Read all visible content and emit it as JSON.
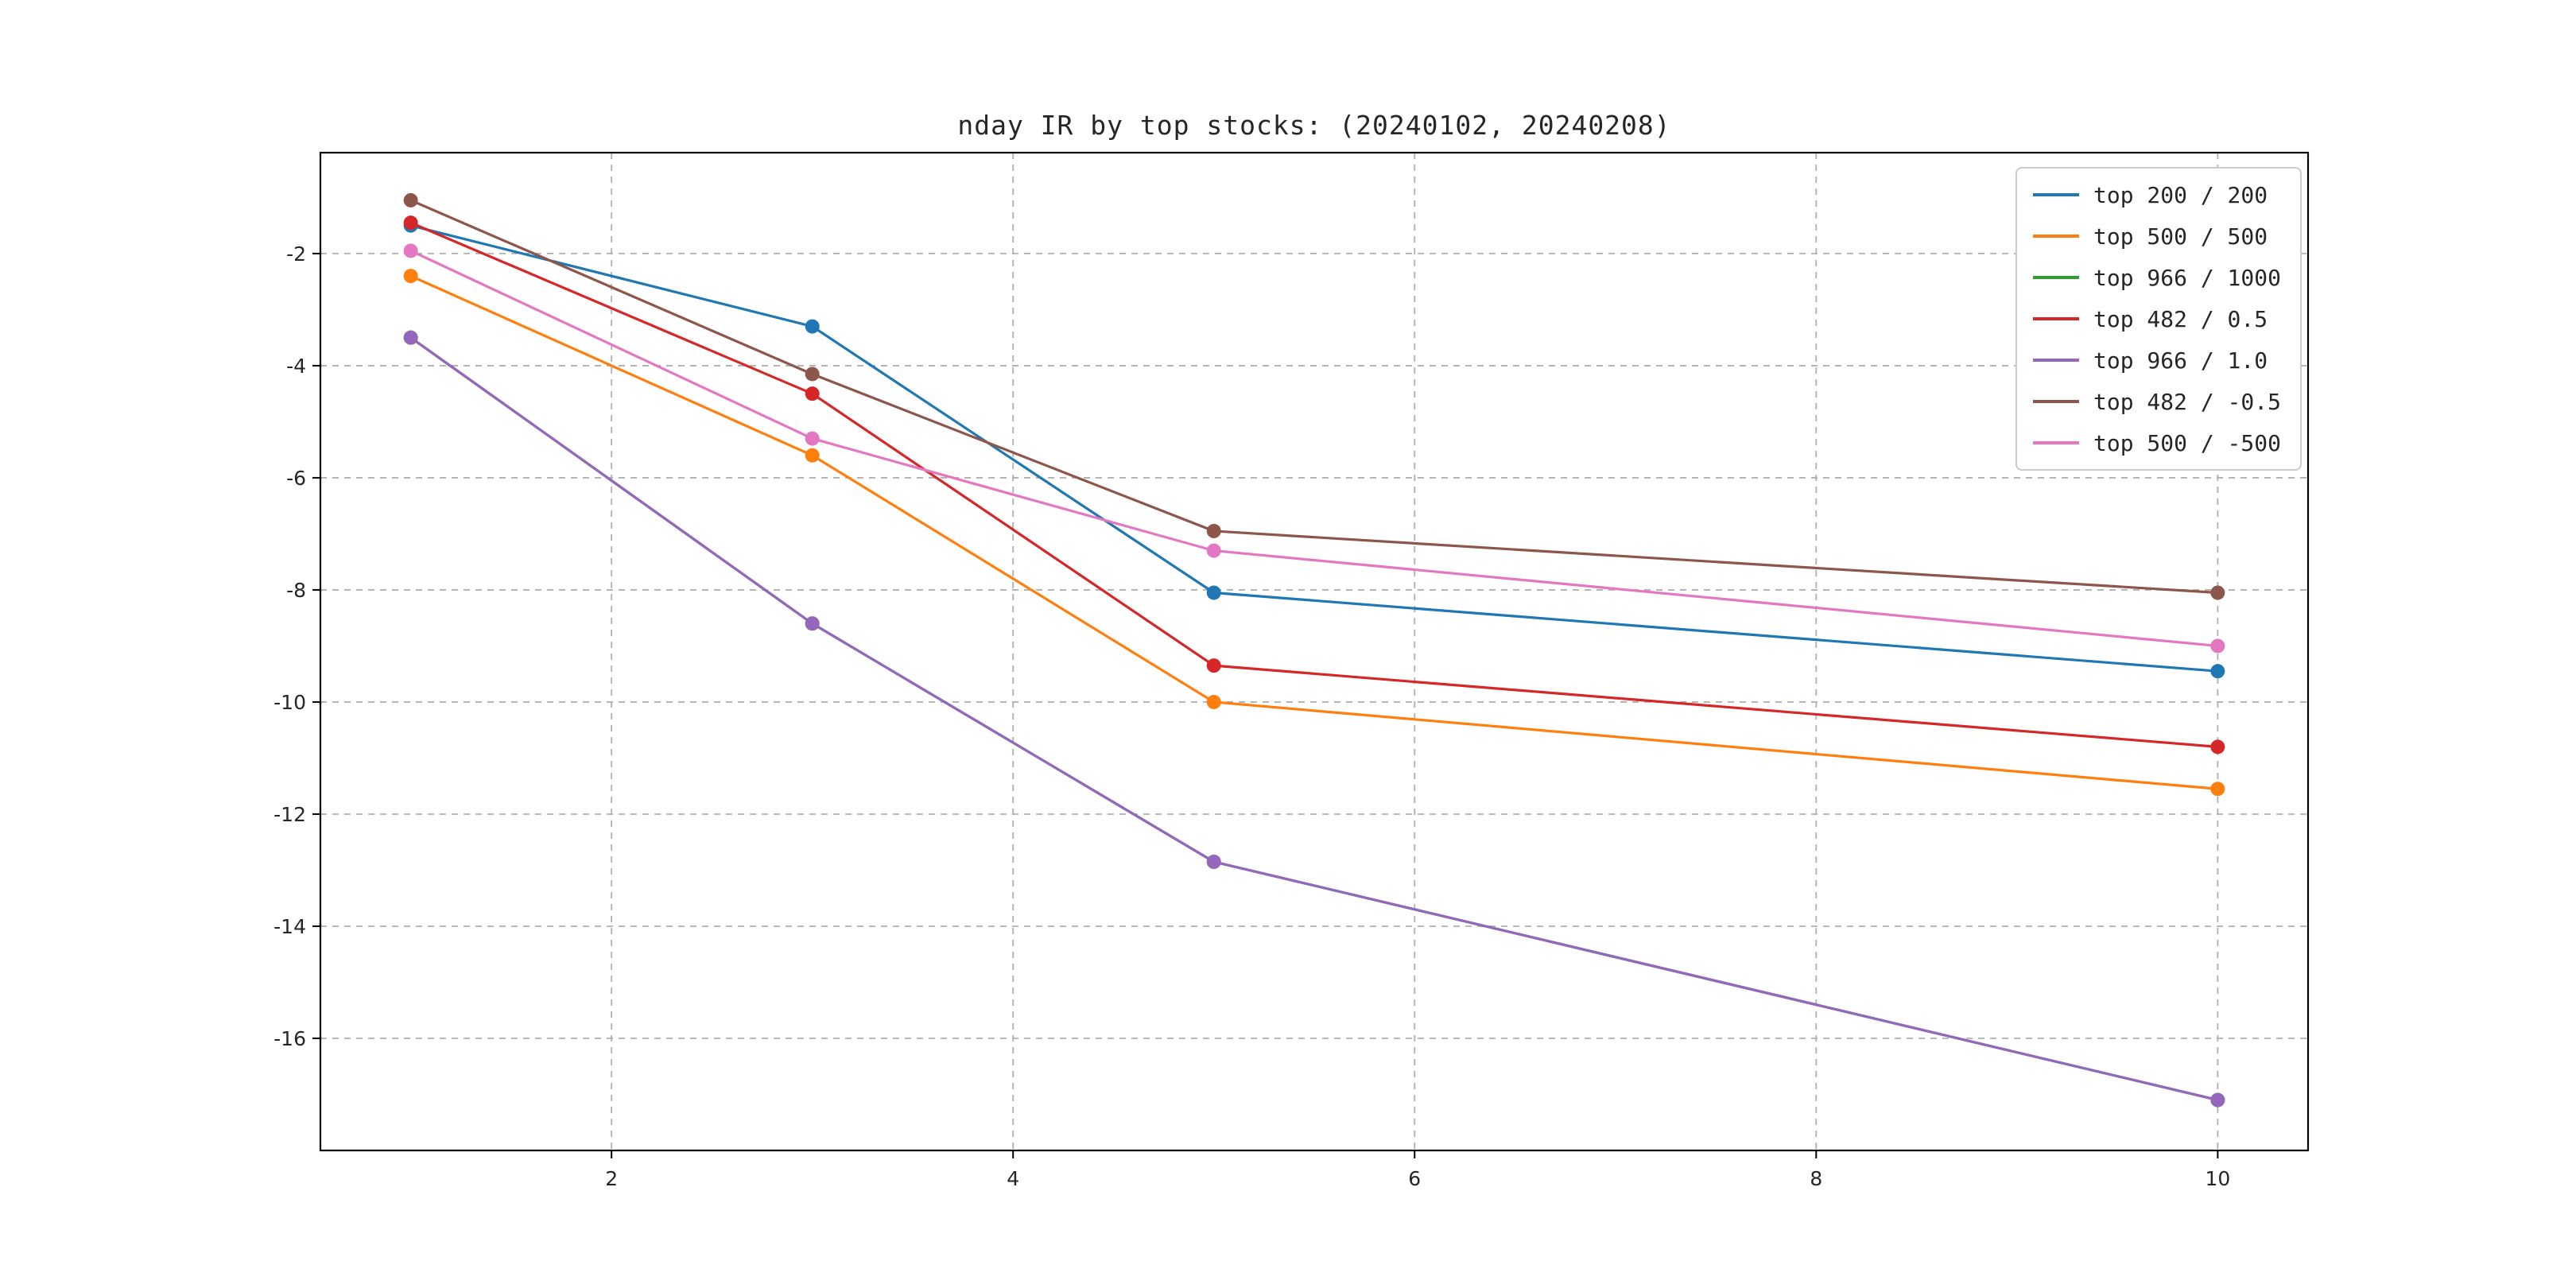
{
  "chart_data": {
    "type": "line",
    "title": "nday IR by top stocks: (20240102, 20240208)",
    "xlabel": "",
    "ylabel": "",
    "x": [
      1,
      3,
      5,
      10
    ],
    "series": [
      {
        "name": "top 200 / 200",
        "color": "#1f77b4",
        "values": [
          -1.5,
          -3.3,
          -8.05,
          -9.45
        ]
      },
      {
        "name": "top 500 / 500",
        "color": "#ff7f0e",
        "values": [
          -2.4,
          -5.6,
          -10.0,
          -11.55
        ]
      },
      {
        "name": "top 966 / 1000",
        "color": "#2ca02c",
        "values": [
          -3.5,
          -8.6,
          -12.85,
          -17.1
        ]
      },
      {
        "name": "top 482 / 0.5",
        "color": "#d62728",
        "values": [
          -1.45,
          -4.5,
          -9.35,
          -10.8
        ]
      },
      {
        "name": "top 966 / 1.0",
        "color": "#9467bd",
        "values": [
          -3.5,
          -8.6,
          -12.85,
          -17.1
        ]
      },
      {
        "name": "top 482 / -0.5",
        "color": "#8c564b",
        "values": [
          -1.05,
          -4.15,
          -6.95,
          -8.05
        ]
      },
      {
        "name": "top 500 / -500",
        "color": "#e377c2",
        "values": [
          -1.95,
          -5.3,
          -7.3,
          -9.0
        ]
      }
    ],
    "xlim": [
      0.55,
      10.45
    ],
    "ylim": [
      -18.0,
      -0.2
    ],
    "xticks": [
      2,
      4,
      6,
      8,
      10
    ],
    "yticks": [
      -2,
      -4,
      -6,
      -8,
      -10,
      -12,
      -14,
      -16
    ],
    "grid": "dashed",
    "legend_position": "upper right",
    "marker": "circle",
    "grid_color": "#b0b0b0",
    "axes_color": "#000000"
  }
}
